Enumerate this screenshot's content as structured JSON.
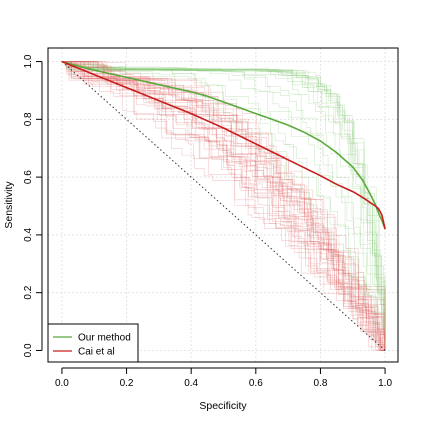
{
  "chart_data": {
    "type": "line",
    "title": "",
    "xlabel": "Specificity",
    "ylabel": "Sensitivity",
    "xlim": [
      0,
      1
    ],
    "ylim": [
      0,
      1
    ],
    "x_ticks": [
      "0.0",
      "0.2",
      "0.4",
      "0.6",
      "0.8",
      "1.0"
    ],
    "y_ticks": [
      "0.0",
      "0.2",
      "0.4",
      "0.6",
      "0.8",
      "1.0"
    ],
    "grid": true,
    "legend_position": "bottom-left",
    "reference_line": {
      "x": [
        0,
        1
      ],
      "y": [
        1,
        0
      ],
      "style": "dotted"
    },
    "series": [
      {
        "name": "Our method",
        "color": "#5aaa3c",
        "x": [
          0,
          0.1,
          0.2,
          0.3,
          0.4,
          0.45,
          0.5,
          0.55,
          0.6,
          0.65,
          0.7,
          0.75,
          0.8,
          0.85,
          0.9,
          0.93,
          0.95,
          0.97,
          0.98,
          0.99,
          1.0
        ],
        "y": [
          1.0,
          0.97,
          0.945,
          0.92,
          0.895,
          0.88,
          0.86,
          0.84,
          0.82,
          0.8,
          0.78,
          0.755,
          0.725,
          0.685,
          0.635,
          0.59,
          0.55,
          0.505,
          0.475,
          0.45,
          0.42
        ]
      },
      {
        "name": "Cai et al",
        "color": "#c81e1e",
        "x": [
          0,
          0.1,
          0.2,
          0.3,
          0.4,
          0.5,
          0.6,
          0.7,
          0.8,
          0.85,
          0.9,
          0.93,
          0.95,
          0.97,
          0.98,
          0.99,
          1.0
        ],
        "y": [
          1.0,
          0.955,
          0.91,
          0.865,
          0.82,
          0.77,
          0.715,
          0.66,
          0.605,
          0.575,
          0.55,
          0.53,
          0.515,
          0.5,
          0.49,
          0.47,
          0.42
        ]
      }
    ]
  }
}
